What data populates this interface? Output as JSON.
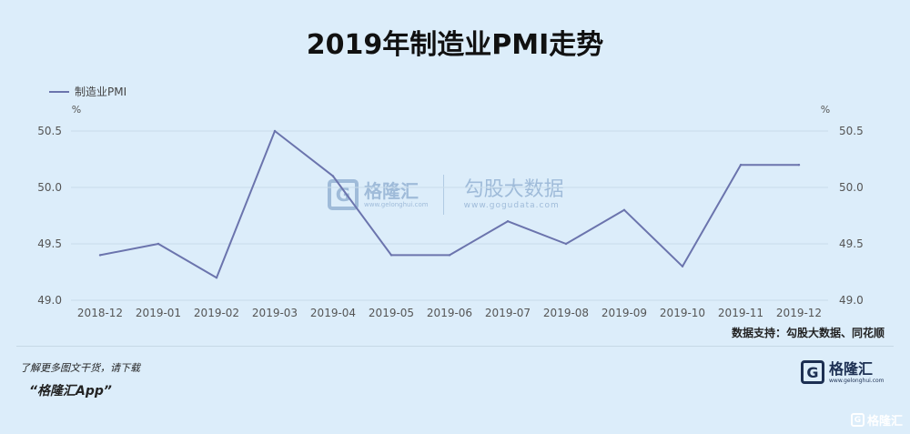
{
  "chart_data": {
    "type": "line",
    "title": "2019年制造业PMI走势",
    "unit_left": "%",
    "unit_right": "%",
    "categories": [
      "2018-12",
      "2019-01",
      "2019-02",
      "2019-03",
      "2019-04",
      "2019-05",
      "2019-06",
      "2019-07",
      "2019-08",
      "2019-09",
      "2019-10",
      "2019-11",
      "2019-12"
    ],
    "series": [
      {
        "name": "制造业PMI",
        "values": [
          49.4,
          49.5,
          49.2,
          50.5,
          50.1,
          49.4,
          49.4,
          49.7,
          49.5,
          49.8,
          49.3,
          50.2,
          50.2
        ]
      }
    ],
    "ylim": [
      49.0,
      50.5
    ],
    "yticks": [
      "49.0",
      "49.5",
      "50.0",
      "50.5"
    ],
    "grid": true,
    "legend": "top-left",
    "line_color": "#6b74ad"
  },
  "source_text": "数据支持：勾股大数据、同花顺",
  "promo": {
    "line1": "了解更多图文干货，请下载",
    "line2": "“格隆汇App”"
  },
  "logo": {
    "name": "格隆汇",
    "url": "www.gelonghui.com",
    "mark": "G"
  },
  "watermark": {
    "brand": "格隆汇",
    "brand_url": "www.gelonghui.com",
    "partner": "勾股大数据",
    "partner_url": "www.gogudata.com",
    "mark": "G"
  },
  "corner_mark": {
    "mark": "G",
    "text": "格隆汇"
  },
  "colors": {
    "background": "#dcedfa",
    "grid": "#c9dcea",
    "axis_text": "#555555"
  }
}
